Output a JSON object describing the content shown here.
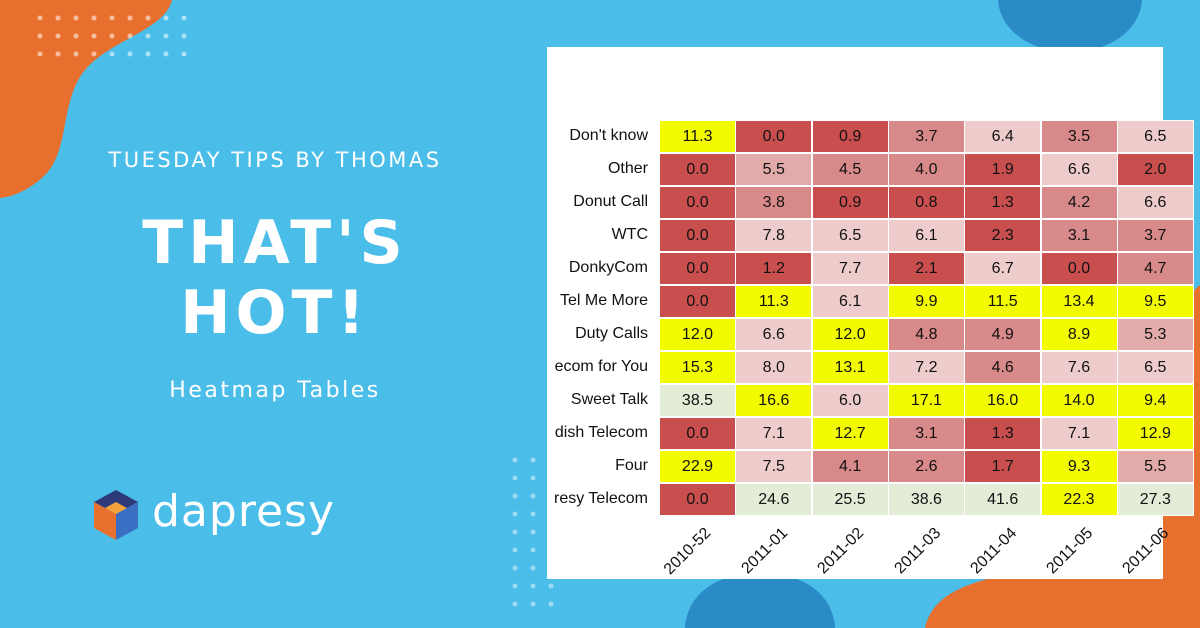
{
  "header": {
    "kicker": "TUESDAY TIPS BY THOMAS",
    "headline_line1": "THAT'S",
    "headline_line2": "HOT!",
    "subtitle": "Heatmap Tables"
  },
  "brand": {
    "name": "dapresy",
    "logo_icon": "dapresy-cube-logo"
  },
  "colors": {
    "background": "#4bbde9",
    "accent_orange": "#e8702e",
    "accent_dark_blue": "#2b8bc6",
    "cell_yellow": "#f3fb00",
    "cell_red_dark": "#c94f4f",
    "cell_red_light": "#eecccc",
    "cell_green_light": "#e3ecd6"
  },
  "chart_data": {
    "type": "heatmap",
    "rows": [
      "Don't know",
      "Other",
      "Donut Call",
      "WTC",
      "DonkyCom",
      "Tel Me More",
      "Duty Calls",
      "ecom for You",
      "Sweet Talk",
      "dish Telecom",
      "Four",
      "resy Telecom"
    ],
    "columns": [
      "2010-52",
      "2011-01",
      "2011-02",
      "2011-03",
      "2011-04",
      "2011-05",
      "2011-06"
    ],
    "column_labels_visible": [
      "2010-52",
      "2011-01",
      "2011-02",
      "2011-03",
      "2011-04",
      "2011-05",
      "2011-06"
    ],
    "values_display": [
      [
        "11.3",
        "0.0",
        "0.9",
        "3.7",
        "6.4",
        "3.5",
        "6.5"
      ],
      [
        "0.0",
        "5.5",
        "4.5",
        "4.0",
        "1.9",
        "6.6",
        "2.0"
      ],
      [
        "0.0",
        "3.8",
        "0.9",
        "0.8",
        "1.3",
        "4.2",
        "6.6"
      ],
      [
        "0.0",
        "7.8",
        "6.5",
        "6.1",
        "2.3",
        "3.1",
        "3.7"
      ],
      [
        "0.0",
        "1.2",
        "7.7",
        "2.1",
        "6.7",
        "0.0",
        "4.7"
      ],
      [
        "0.0",
        "11.3",
        "6.1",
        "9.9",
        "11.5",
        "13.4",
        "9.5"
      ],
      [
        "12.0",
        "6.6",
        "12.0",
        "4.8",
        "4.9",
        "8.9",
        "5.3"
      ],
      [
        "15.3",
        "8.0",
        "13.1",
        "7.2",
        "4.6",
        "7.6",
        "6.5"
      ],
      [
        "38.5",
        "16.6",
        "6.0",
        "17.1",
        "16.0",
        "14.0",
        "9.4"
      ],
      [
        "0.0",
        "7.1",
        "12.7",
        "3.1",
        "1.3",
        "7.1",
        "12.9"
      ],
      [
        "22.9",
        "7.5",
        "4.1",
        "2.6",
        "1.7",
        "9.3",
        "5.5"
      ],
      [
        "0.0",
        "24.6",
        "25.5",
        "38.6",
        "41.6",
        "22.3",
        "27.3"
      ]
    ],
    "cell_colors": [
      [
        "#f3fb00",
        "#c94f4f",
        "#c94f4f",
        "#d88a8a",
        "#eecccc",
        "#d88a8a",
        "#eecccc"
      ],
      [
        "#c94f4f",
        "#e3aaaa",
        "#d88a8a",
        "#d88a8a",
        "#c94f4f",
        "#eecccc",
        "#c94f4f"
      ],
      [
        "#c94f4f",
        "#d88a8a",
        "#c94f4f",
        "#c94f4f",
        "#c94f4f",
        "#d88a8a",
        "#eecccc"
      ],
      [
        "#c94f4f",
        "#eecccc",
        "#eecccc",
        "#eecccc",
        "#c94f4f",
        "#d88a8a",
        "#d88a8a"
      ],
      [
        "#c94f4f",
        "#c94f4f",
        "#eecccc",
        "#c94f4f",
        "#eecccc",
        "#c94f4f",
        "#d88a8a"
      ],
      [
        "#c94f4f",
        "#f3fb00",
        "#eecccc",
        "#f3fb00",
        "#f3fb00",
        "#f3fb00",
        "#f3fb00"
      ],
      [
        "#f3fb00",
        "#eecccc",
        "#f3fb00",
        "#d88a8a",
        "#d88a8a",
        "#f3fb00",
        "#e3aaaa"
      ],
      [
        "#f3fb00",
        "#eecccc",
        "#f3fb00",
        "#eecccc",
        "#d88a8a",
        "#eecccc",
        "#eecccc"
      ],
      [
        "#e3ecd6",
        "#f3fb00",
        "#eecccc",
        "#f3fb00",
        "#f3fb00",
        "#f3fb00",
        "#f3fb00"
      ],
      [
        "#c94f4f",
        "#eecccc",
        "#f3fb00",
        "#d88a8a",
        "#c94f4f",
        "#eecccc",
        "#f3fb00"
      ],
      [
        "#f3fb00",
        "#eecccc",
        "#d88a8a",
        "#d88a8a",
        "#c94f4f",
        "#f3fb00",
        "#e3aaaa"
      ],
      [
        "#c94f4f",
        "#e3ecd6",
        "#e3ecd6",
        "#e3ecd6",
        "#e3ecd6",
        "#f3fb00",
        "#e3ecd6"
      ]
    ]
  }
}
